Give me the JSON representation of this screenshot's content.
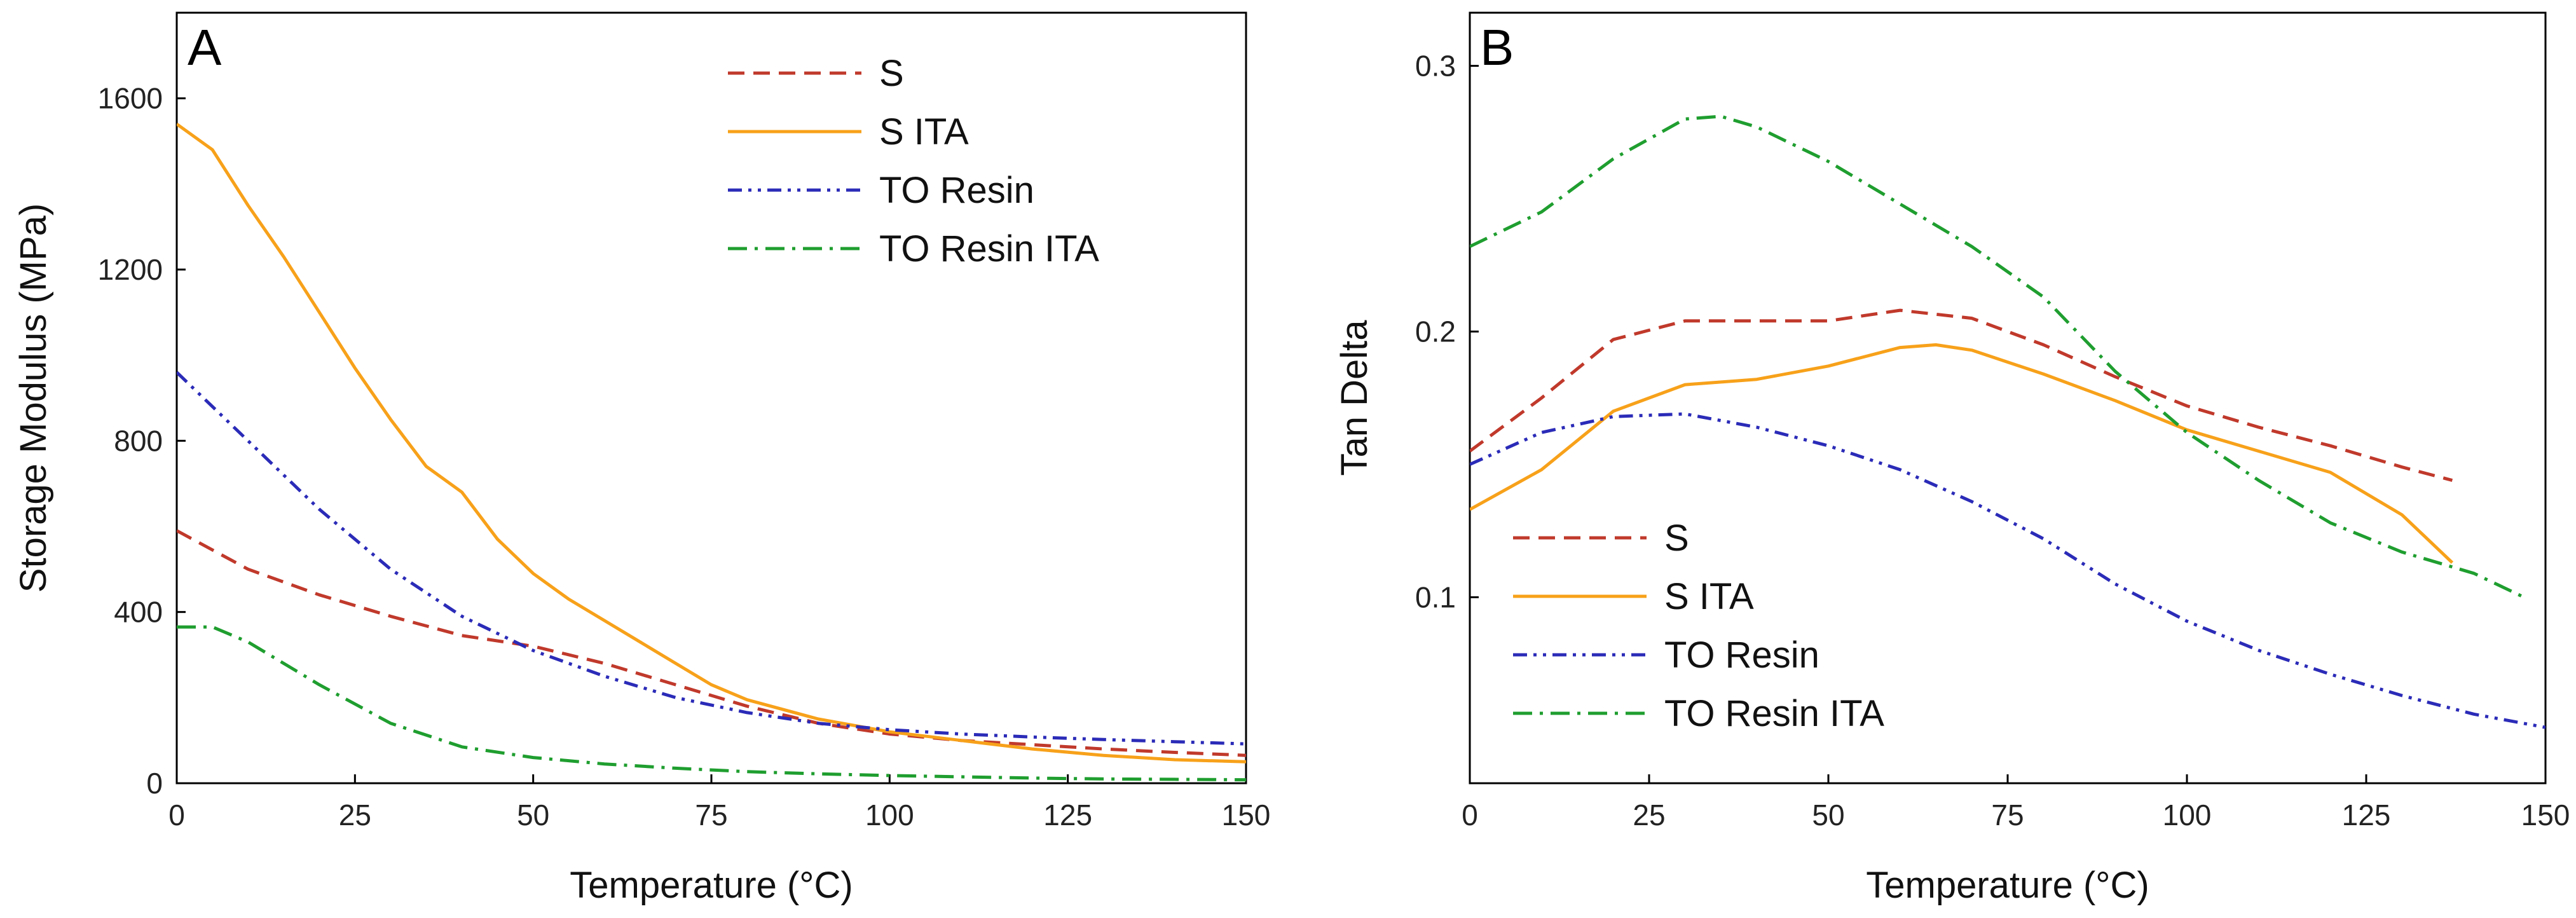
{
  "chart_data": [
    {
      "type": "line",
      "panel": "A",
      "xlabel": "Temperature (°C)",
      "ylabel": "Storage Modulus (MPa)",
      "xlim": [
        0,
        150
      ],
      "ylim": [
        0,
        1800
      ],
      "xticks": [
        0,
        25,
        50,
        75,
        100,
        125,
        150
      ],
      "yticks": [
        0,
        400,
        800,
        1200,
        1600
      ],
      "legend_position": "top-right",
      "grid": false,
      "series": [
        {
          "name": "S",
          "style": "dashed",
          "color": "#c0392b",
          "x": [
            0,
            10,
            20,
            30,
            40,
            50,
            60,
            70,
            80,
            90,
            100,
            110,
            120,
            130,
            140,
            150
          ],
          "y": [
            590,
            500,
            440,
            390,
            345,
            320,
            280,
            230,
            180,
            140,
            115,
            100,
            90,
            80,
            72,
            65
          ]
        },
        {
          "name": "S ITA",
          "style": "solid",
          "color": "#f7a11a",
          "x": [
            0,
            5,
            10,
            15,
            20,
            25,
            30,
            35,
            40,
            45,
            50,
            55,
            60,
            65,
            70,
            75,
            80,
            90,
            100,
            110,
            120,
            130,
            140,
            150
          ],
          "y": [
            1540,
            1480,
            1350,
            1230,
            1100,
            970,
            850,
            740,
            680,
            570,
            490,
            430,
            380,
            330,
            280,
            230,
            195,
            150,
            120,
            100,
            80,
            65,
            55,
            50
          ]
        },
        {
          "name": "TO Resin",
          "style": "dash-dot-dot",
          "color": "#2b2bb8",
          "x": [
            0,
            10,
            20,
            30,
            40,
            50,
            60,
            70,
            80,
            90,
            100,
            110,
            120,
            130,
            140,
            150
          ],
          "y": [
            960,
            800,
            640,
            500,
            390,
            310,
            250,
            200,
            165,
            140,
            125,
            115,
            108,
            102,
            97,
            92
          ]
        },
        {
          "name": "TO Resin ITA",
          "style": "dash-dot",
          "color": "#1f9e2f",
          "x": [
            0,
            5,
            10,
            20,
            30,
            40,
            50,
            60,
            70,
            80,
            90,
            100,
            110,
            120,
            130,
            140,
            150
          ],
          "y": [
            365,
            365,
            330,
            230,
            140,
            85,
            60,
            45,
            35,
            27,
            22,
            18,
            15,
            12,
            10,
            9,
            8
          ]
        }
      ]
    },
    {
      "type": "line",
      "panel": "B",
      "xlabel": "Temperature (°C)",
      "ylabel": "Tan Delta",
      "xlim": [
        0,
        150
      ],
      "ylim": [
        0.03,
        0.32
      ],
      "xticks": [
        0,
        25,
        50,
        75,
        100,
        125,
        150
      ],
      "yticks": [
        0.1,
        0.2,
        0.3
      ],
      "legend_position": "bottom-left",
      "grid": false,
      "series": [
        {
          "name": "S",
          "style": "dashed",
          "color": "#c0392b",
          "x": [
            0,
            10,
            20,
            30,
            40,
            50,
            60,
            70,
            80,
            90,
            100,
            110,
            120,
            130,
            137
          ],
          "y": [
            0.155,
            0.175,
            0.197,
            0.204,
            0.204,
            0.204,
            0.208,
            0.205,
            0.195,
            0.183,
            0.172,
            0.164,
            0.157,
            0.149,
            0.144
          ]
        },
        {
          "name": "S ITA",
          "style": "solid",
          "color": "#f7a11a",
          "x": [
            0,
            10,
            20,
            30,
            40,
            50,
            60,
            65,
            70,
            80,
            90,
            100,
            110,
            120,
            130,
            137
          ],
          "y": [
            0.133,
            0.148,
            0.17,
            0.18,
            0.182,
            0.187,
            0.194,
            0.195,
            0.193,
            0.184,
            0.174,
            0.163,
            0.155,
            0.147,
            0.131,
            0.113
          ]
        },
        {
          "name": "TO Resin",
          "style": "dash-dot-dot",
          "color": "#2b2bb8",
          "x": [
            0,
            10,
            20,
            30,
            40,
            50,
            60,
            70,
            80,
            90,
            100,
            110,
            120,
            130,
            140,
            150
          ],
          "y": [
            0.15,
            0.162,
            0.168,
            0.169,
            0.164,
            0.157,
            0.148,
            0.136,
            0.122,
            0.105,
            0.091,
            0.08,
            0.071,
            0.063,
            0.056,
            0.051
          ]
        },
        {
          "name": "TO Resin ITA",
          "style": "dash-dot",
          "color": "#1f9e2f",
          "x": [
            0,
            10,
            20,
            30,
            35,
            40,
            50,
            60,
            70,
            80,
            90,
            100,
            110,
            120,
            130,
            140,
            147
          ],
          "y": [
            0.232,
            0.245,
            0.265,
            0.28,
            0.281,
            0.277,
            0.264,
            0.248,
            0.232,
            0.213,
            0.185,
            0.162,
            0.144,
            0.128,
            0.117,
            0.109,
            0.1
          ]
        }
      ]
    }
  ]
}
